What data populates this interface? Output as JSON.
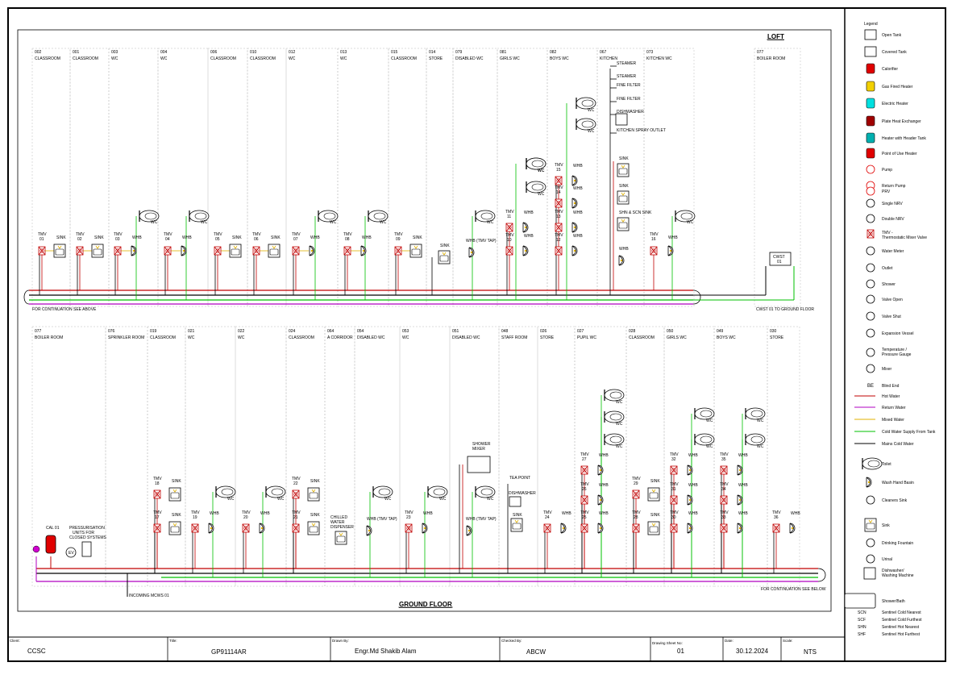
{
  "header": {
    "loft_title": "LOFT",
    "ground_title": "GROUND FLOOR"
  },
  "loft_rooms": [
    {
      "code": "002",
      "name": "CLASSROOM"
    },
    {
      "code": "001",
      "name": "CLASSROOM"
    },
    {
      "code": "003",
      "name": "WC"
    },
    {
      "code": "004",
      "name": "WC"
    },
    {
      "code": "006",
      "name": "CLASSROOM"
    },
    {
      "code": "010",
      "name": "CLASSROOM"
    },
    {
      "code": "012",
      "name": "WC"
    },
    {
      "code": "013",
      "name": "WC"
    },
    {
      "code": "015",
      "name": "CLASSROOM"
    },
    {
      "code": "014",
      "name": "STORE"
    },
    {
      "code": "079",
      "name": "DISABLED WC"
    },
    {
      "code": "081",
      "name": "GIRLS WC"
    },
    {
      "code": "082",
      "name": "BOYS WC"
    },
    {
      "code": "067",
      "name": "KITCHEN"
    },
    {
      "code": "073",
      "name": "KITCHEN WC"
    },
    {
      "code": "077",
      "name": "BOILER ROOM"
    }
  ],
  "ground_rooms": [
    {
      "code": "077",
      "name": "BOILER ROOM"
    },
    {
      "code": "076",
      "name": "SPRINKLER ROOM"
    },
    {
      "code": "019",
      "name": "CLASSROOM"
    },
    {
      "code": "021",
      "name": "WC"
    },
    {
      "code": "022",
      "name": "WC"
    },
    {
      "code": "024",
      "name": "CLASSROOM"
    },
    {
      "code": "064",
      "name": "A CORRIDOR"
    },
    {
      "code": "054",
      "name": "DISABLED WC"
    },
    {
      "code": "053",
      "name": "WC"
    },
    {
      "code": "051",
      "name": "DISABLED WC"
    },
    {
      "code": "048",
      "name": "STAFF ROOM"
    },
    {
      "code": "026",
      "name": "STORE"
    },
    {
      "code": "027",
      "name": "PUPIL WC"
    },
    {
      "code": "028",
      "name": "CLASSROOM"
    },
    {
      "code": "050",
      "name": "GIRLS WC"
    },
    {
      "code": "049",
      "name": "BOYS WC"
    },
    {
      "code": "030",
      "name": "STORE"
    }
  ],
  "fixtures": {
    "tmv": "TMV",
    "sink": "SINK",
    "whb": "WHB",
    "wc": "WC",
    "whb_tmv_tap": "WHB (TMV TAP)",
    "steamer": "STEAMER",
    "fine_filter": "FINE FILTER",
    "dishwasher": "DISHWASHER",
    "kitchen_spray": "KITCHEN SPRAY OUTLET",
    "shn_scn_sink": "SHN & SCN SINK",
    "shower_mixer": "SHOWER MIXER",
    "tea_point": "TEA POINT",
    "chilled_water": "CHILLED WATER DISPENSER",
    "pressurisation": "PRESSURISATION UNITS FOR CLOSED SYSTEMS",
    "cal": "CAL 01",
    "ev": "EV",
    "cwst": "CWST 01"
  },
  "tmv_numbers_loft": [
    "01",
    "02",
    "03",
    "04",
    "05",
    "06",
    "07",
    "08",
    "09",
    "10",
    "11",
    "12",
    "13",
    "14",
    "15",
    "16"
  ],
  "tmv_numbers_ground": [
    "17",
    "18",
    "19",
    "20",
    "21",
    "22",
    "23",
    "24",
    "25",
    "26",
    "27",
    "28",
    "29",
    "30",
    "31",
    "32",
    "33",
    "34",
    "35",
    "36"
  ],
  "notes": {
    "cont_above": "FOR CONTINUATION SEE ABOVE",
    "cont_below": "FOR CONTINUATION SEE BELOW",
    "cwst_to_gf": "CWST 01 TO GROUND FLOOR",
    "incoming": "INCOMING MCWS 01"
  },
  "legend": {
    "title": "Legend",
    "items": [
      "Open Tank",
      "Covered Tank",
      "Calorifier",
      "Gas Fired Heater",
      "Electric Heater",
      "Plate Heat Exchanger",
      "Heater with Header Tank",
      "Point of Use Heater",
      "Pump",
      "Return Pump",
      "PRV",
      "Single NRV",
      "Double NRV",
      "TMV - Thermostatic Mixer Valve",
      "Water Meter",
      "Outlet",
      "Shower",
      "Valve Open",
      "Valve Shut",
      "Expansion Vessel",
      "Temperature / Pressure Gauge",
      "Mixer",
      "Blind End",
      "Hot Water",
      "Return Water",
      "Mixed Water",
      "Cold Water Supply From Tank",
      "Mains Cold Water",
      "Toilet",
      "Wash Hand Basin",
      "Cleaners Sink",
      "Sink",
      "Drinking Fountain",
      "Urinal",
      "Dishwasher/ Washing Machine",
      "Shower/Bath"
    ],
    "be": "BE",
    "abbrev": [
      {
        "code": "SCN",
        "text": "Sentinel Cold Nearest"
      },
      {
        "code": "SCF",
        "text": "Sentinel Cold Furthest"
      },
      {
        "code": "SHN",
        "text": "Sentinel Hot Nearest"
      },
      {
        "code": "SHF",
        "text": "Sentinel Hot Furthest"
      }
    ]
  },
  "colors": {
    "hot": "#c00000",
    "return": "#b000c0",
    "mixed": "#e0b000",
    "cold_tank": "#00c000",
    "mains": "#000000"
  },
  "title_block": {
    "client_label": "Client:",
    "client": "CCSC",
    "title_label": "Title:",
    "title": "GP91114AR",
    "drawn_label": "Drawn By:",
    "drawn": "Engr.Md Shakib Alam",
    "checked_label": "Checked By:",
    "checked": "ABCW",
    "sheet_label": "Drawing Sheet No:",
    "sheet": "01",
    "date_label": "Date:",
    "date": "30.12.2024",
    "scale_label": "Scale:",
    "scale": "NTS"
  }
}
